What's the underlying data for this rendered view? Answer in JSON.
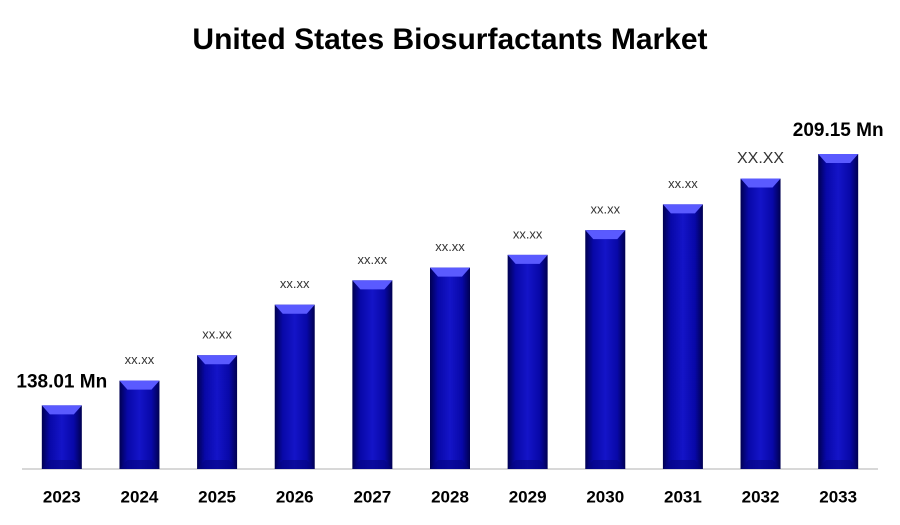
{
  "chart_data": {
    "type": "bar",
    "title": "United States Biosurfactants Market",
    "categories": [
      "2023",
      "2024",
      "2025",
      "2026",
      "2027",
      "2028",
      "2029",
      "2030",
      "2031",
      "2032",
      "2033"
    ],
    "values": [
      138.01,
      145.0,
      152.2,
      166.5,
      173.4,
      177.0,
      180.6,
      187.6,
      194.9,
      202.2,
      209.15
    ],
    "value_labels": [
      "138.01 Mn",
      "xx.xx",
      "xx.xx",
      "xx.xx",
      "xx.xx",
      "xx.xx",
      "xx.xx",
      "xx.xx",
      "xx.xx",
      "XX.XX",
      "209.15 Mn"
    ],
    "color": "#0c0cb4",
    "ylim": [
      120,
      210
    ]
  }
}
